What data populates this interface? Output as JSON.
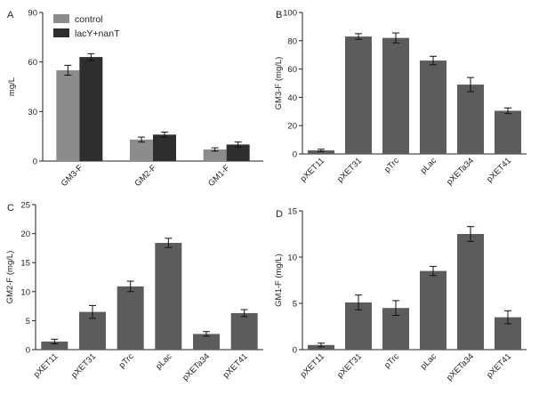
{
  "figure": {
    "colors": {
      "control": "#8c8c8c",
      "treated": "#2e2e2e",
      "bar": "#5c5c5c",
      "axis": "#222222"
    },
    "legend": {
      "entries": [
        "control",
        "lacY+nanT"
      ]
    }
  },
  "chart_data": [
    {
      "panel": "A",
      "type": "bar",
      "categories": [
        "GM3-F",
        "GM2-F",
        "GM1-F"
      ],
      "series": [
        {
          "name": "control",
          "values": [
            55,
            13,
            7
          ],
          "errors": [
            3,
            1.5,
            1
          ]
        },
        {
          "name": "lacY+nanT",
          "values": [
            63,
            16,
            10
          ],
          "errors": [
            2,
            1.5,
            1.5
          ]
        }
      ],
      "ylabel": "mg/L",
      "ylim": [
        0,
        90
      ],
      "yticks": [
        0,
        30,
        60,
        90
      ],
      "legend": "top-left"
    },
    {
      "panel": "B",
      "type": "bar",
      "categories": [
        "pXET11",
        "pXET31",
        "pTrc",
        "pLac",
        "pXETa34",
        "pXET41"
      ],
      "values": [
        2.5,
        83,
        82,
        66,
        49,
        30.5
      ],
      "errors": [
        0.8,
        2,
        3.5,
        3,
        5,
        2
      ],
      "ylabel": "GM3-F (mg/L)",
      "ylim": [
        0,
        100
      ],
      "yticks": [
        0,
        20,
        40,
        60,
        80,
        100
      ]
    },
    {
      "panel": "C",
      "type": "bar",
      "categories": [
        "pXET11",
        "pXET31",
        "pTrc",
        "pLac",
        "pXETa34",
        "pXET41"
      ],
      "values": [
        1.4,
        6.5,
        10.9,
        18.4,
        2.7,
        6.3
      ],
      "errors": [
        0.4,
        1.1,
        0.9,
        0.8,
        0.4,
        0.6
      ],
      "ylabel": "GM2-F (mg/L)",
      "ylim": [
        0,
        25
      ],
      "yticks": [
        0,
        5,
        10,
        15,
        20,
        25
      ]
    },
    {
      "panel": "D",
      "type": "bar",
      "categories": [
        "pXET11",
        "pXET31",
        "pTrc",
        "pLac",
        "pXETa34",
        "pXET41"
      ],
      "values": [
        0.5,
        5.1,
        4.5,
        8.5,
        12.5,
        3.5
      ],
      "errors": [
        0.2,
        0.8,
        0.8,
        0.5,
        0.8,
        0.7
      ],
      "ylabel": "GM1-F (mg/L)",
      "ylim": [
        0,
        15
      ],
      "yticks": [
        0,
        5,
        10,
        15
      ]
    }
  ]
}
